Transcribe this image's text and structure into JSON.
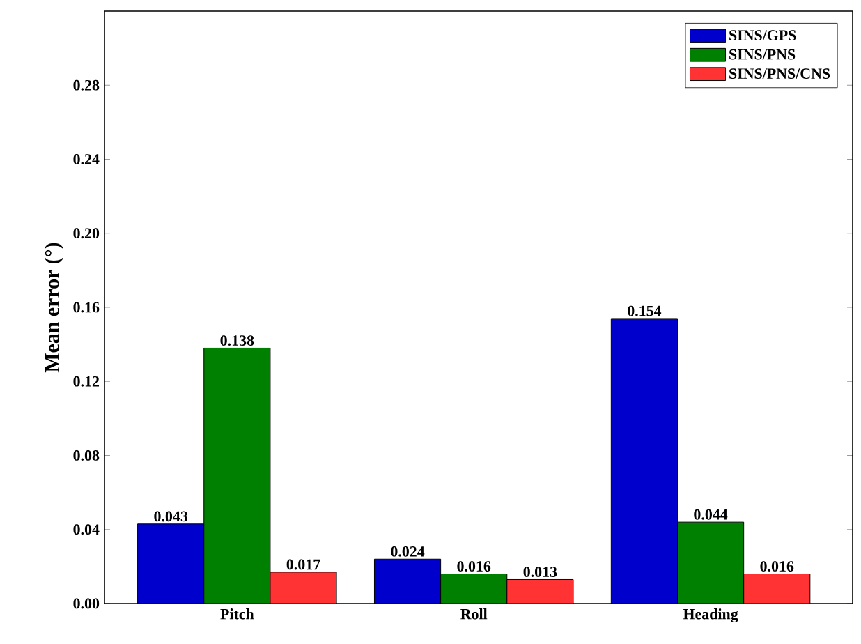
{
  "chart_data": {
    "type": "bar",
    "ylabel": "Mean error (°)",
    "categories": [
      "Pitch",
      "Roll",
      "Heading"
    ],
    "series": [
      {
        "name": "SINS/GPS",
        "color": "#0000cc",
        "values": [
          0.043,
          0.024,
          0.154
        ]
      },
      {
        "name": "SINS/PNS",
        "color": "#008000",
        "values": [
          0.138,
          0.016,
          0.044
        ]
      },
      {
        "name": "SINS/PNS/CNS",
        "color": "#ff3333",
        "values": [
          0.017,
          0.013,
          0.016
        ]
      }
    ],
    "ylim": [
      0,
      0.32
    ],
    "yticks": [
      {
        "value": 0,
        "label": "0.00"
      },
      {
        "value": 0.04,
        "label": "0.04"
      },
      {
        "value": 0.08,
        "label": "0.08"
      },
      {
        "value": 0.12,
        "label": "0.12"
      },
      {
        "value": 0.16,
        "label": "0.16"
      },
      {
        "value": 0.2,
        "label": "0.20"
      },
      {
        "value": 0.24,
        "label": "0.24"
      },
      {
        "value": 0.28,
        "label": "0.28"
      }
    ],
    "data_labels": true,
    "legend": "top right",
    "grid": false
  }
}
